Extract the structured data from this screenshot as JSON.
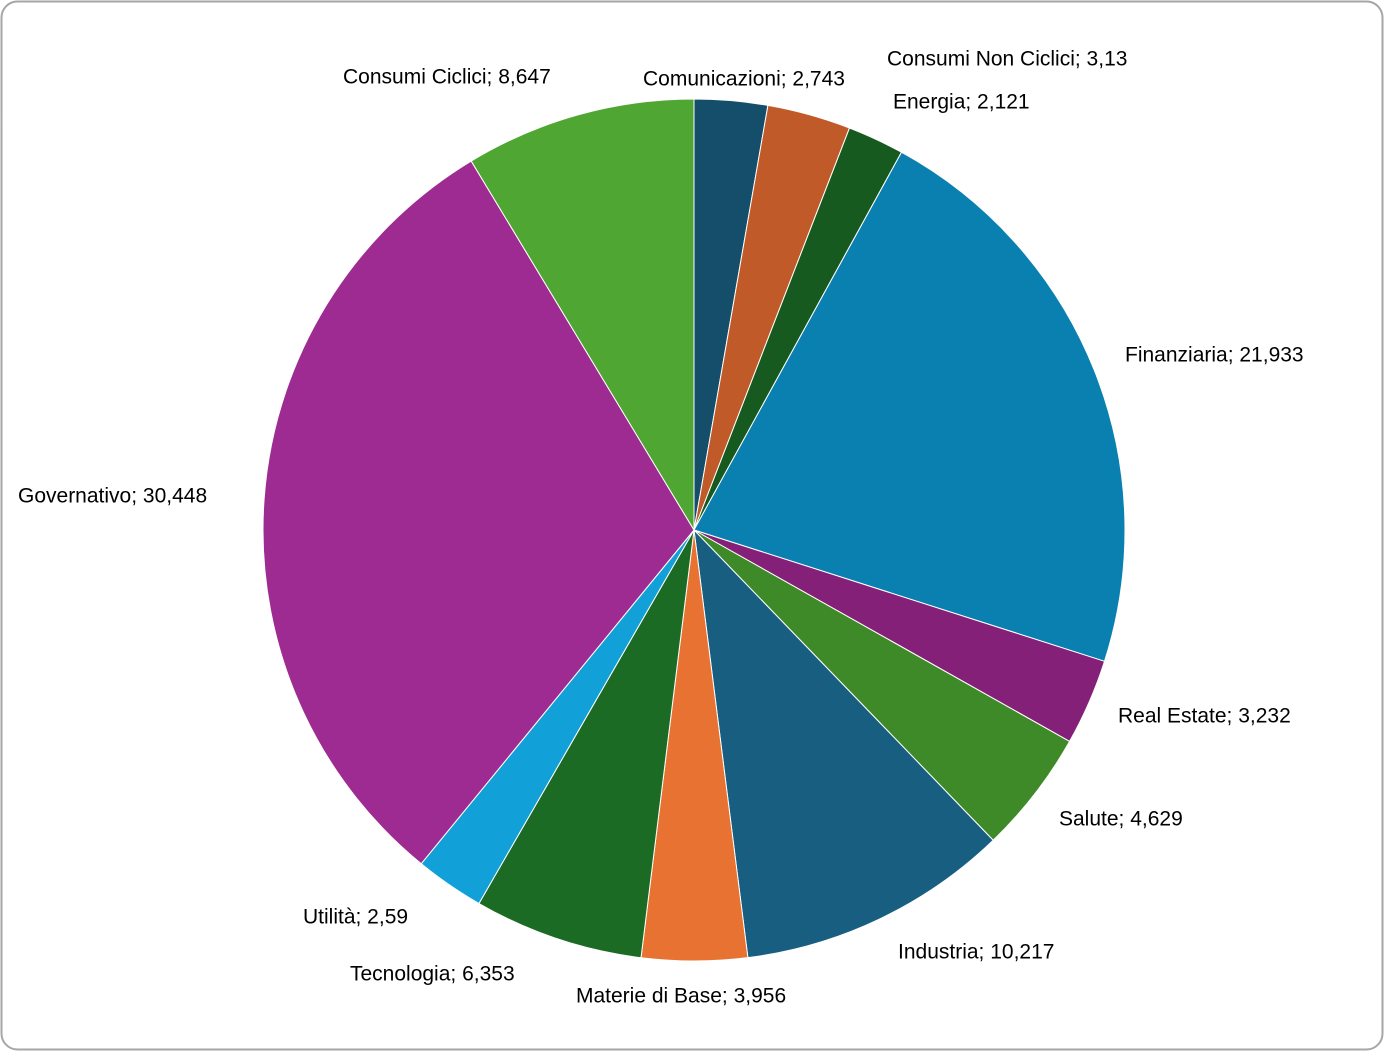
{
  "chart_data": {
    "type": "pie",
    "categories": [
      "Comunicazioni",
      "Consumi Non Ciclici",
      "Energia",
      "Finanziaria",
      "Real Estate",
      "Salute",
      "Industria",
      "Materie di Base",
      "Tecnologia",
      "Utilità",
      "Governativo",
      "Consumi Ciclici"
    ],
    "values": [
      2.743,
      3.13,
      2.121,
      21.933,
      3.232,
      4.629,
      10.217,
      3.956,
      6.353,
      2.59,
      30.448,
      8.647
    ],
    "value_labels": [
      "Comunicazioni; 2,743",
      "Consumi Non Ciclici; 3,13",
      "Energia; 2,121",
      "Finanziaria; 21,933",
      "Real Estate; 3,232",
      "Salute; 4,629",
      "Industria; 10,217",
      "Materie di Base; 3,956",
      "Tecnologia; 6,353",
      "Utilità; 2,59",
      "Governativo; 30,448",
      "Consumi Ciclici; 8,647"
    ],
    "colors": [
      "#154e6b",
      "#c05a28",
      "#175a1f",
      "#0a80b0",
      "#852078",
      "#3e8a28",
      "#185e80",
      "#e87232",
      "#1b6b25",
      "#12a0d8",
      "#9e2b91",
      "#50a632"
    ]
  }
}
